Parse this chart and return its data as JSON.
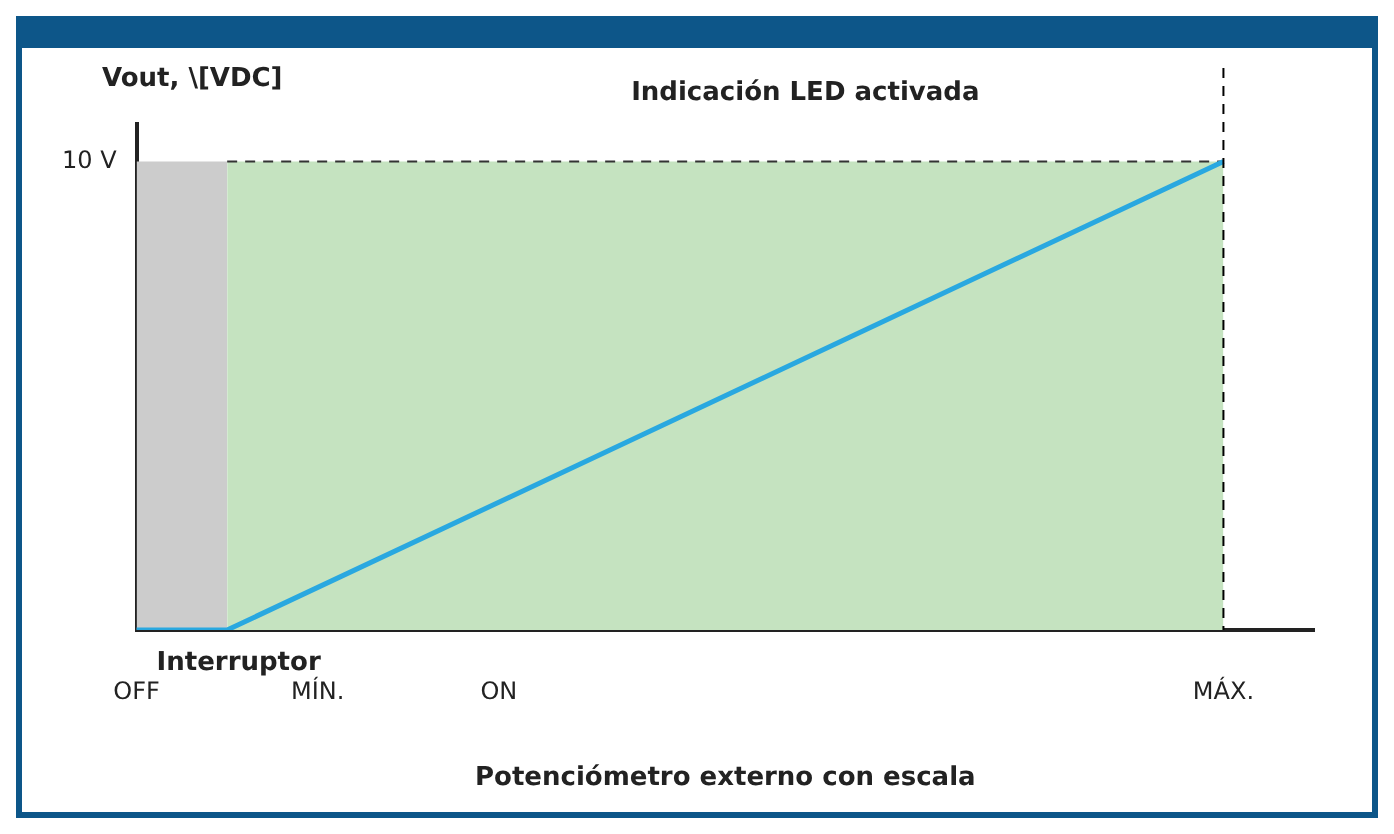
{
  "chart_data": {
    "type": "line",
    "ylabel": "Vout, \\[VDC]",
    "xlabel": "Potenciómetro externo con escala",
    "annotations": [
      "Indicación LED activada",
      "Interruptor"
    ],
    "categories": [
      "OFF",
      null,
      "MÍN.",
      null,
      "ON",
      null,
      null,
      null,
      null,
      null,
      null,
      null,
      "MÁX.",
      null
    ],
    "ylim": [
      0,
      10.8
    ],
    "yticks": [
      0,
      {
        "value": 10,
        "label": "10 V"
      }
    ],
    "series": [
      {
        "type": "area",
        "color": "#cccccc",
        "values": [
          10,
          10,
          null,
          null,
          null,
          null,
          null,
          null,
          null,
          null,
          null,
          null,
          null,
          null
        ]
      },
      {
        "type": "area",
        "color": "#c5e3c0",
        "line_style": "dashed",
        "values": [
          null,
          10,
          null,
          null,
          null,
          null,
          null,
          null,
          null,
          null,
          null,
          null,
          10,
          null
        ]
      },
      {
        "color": "#29a8e0",
        "values": [
          0,
          0,
          null,
          null,
          null,
          null,
          null,
          null,
          null,
          null,
          null,
          null,
          10,
          null
        ]
      }
    ],
    "ref_lines": [
      {
        "axis": "x",
        "value": "MÁX.",
        "color": "#000000",
        "line_style": "dashed"
      }
    ],
    "grid": false,
    "legend": false,
    "marker": "none"
  }
}
